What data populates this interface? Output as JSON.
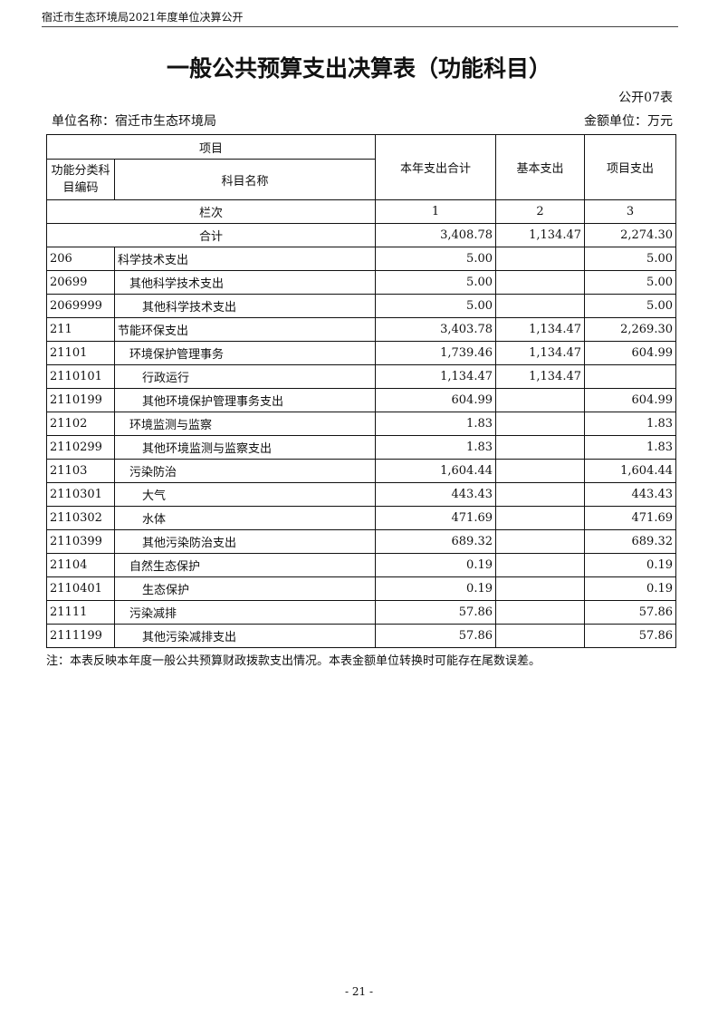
{
  "running_header": "宿迁市生态环境局2021年度单位决算公开",
  "title": "一般公共预算支出决算表（功能科目）",
  "table_no": "公开07表",
  "unit_name": "单位名称：宿迁市生态环境局",
  "money_unit": "金额单位：万元",
  "headers": {
    "item": "项目",
    "code": "功能分类科目编码",
    "name": "科目名称",
    "col1": "本年支出合计",
    "col2": "基本支出",
    "col3": "项目支出",
    "lanci": "栏次",
    "n1": "1",
    "n2": "2",
    "n3": "3"
  },
  "total": {
    "label": "合计",
    "c1": "3,408.78",
    "c2": "1,134.47",
    "c3": "2,274.30"
  },
  "rows": [
    {
      "code": "206",
      "name": "科学技术支出",
      "level": 0,
      "c1": "5.00",
      "c2": "",
      "c3": "5.00"
    },
    {
      "code": "20699",
      "name": "其他科学技术支出",
      "level": 1,
      "c1": "5.00",
      "c2": "",
      "c3": "5.00"
    },
    {
      "code": "2069999",
      "name": "其他科学技术支出",
      "level": 2,
      "c1": "5.00",
      "c2": "",
      "c3": "5.00"
    },
    {
      "code": "211",
      "name": "节能环保支出",
      "level": 0,
      "c1": "3,403.78",
      "c2": "1,134.47",
      "c3": "2,269.30"
    },
    {
      "code": "21101",
      "name": "环境保护管理事务",
      "level": 1,
      "c1": "1,739.46",
      "c2": "1,134.47",
      "c3": "604.99"
    },
    {
      "code": "2110101",
      "name": "行政运行",
      "level": 2,
      "c1": "1,134.47",
      "c2": "1,134.47",
      "c3": ""
    },
    {
      "code": "2110199",
      "name": "其他环境保护管理事务支出",
      "level": 2,
      "c1": "604.99",
      "c2": "",
      "c3": "604.99"
    },
    {
      "code": "21102",
      "name": "环境监测与监察",
      "level": 1,
      "c1": "1.83",
      "c2": "",
      "c3": "1.83"
    },
    {
      "code": "2110299",
      "name": "其他环境监测与监察支出",
      "level": 2,
      "c1": "1.83",
      "c2": "",
      "c3": "1.83"
    },
    {
      "code": "21103",
      "name": "污染防治",
      "level": 1,
      "c1": "1,604.44",
      "c2": "",
      "c3": "1,604.44"
    },
    {
      "code": "2110301",
      "name": "大气",
      "level": 2,
      "c1": "443.43",
      "c2": "",
      "c3": "443.43"
    },
    {
      "code": "2110302",
      "name": "水体",
      "level": 2,
      "c1": "471.69",
      "c2": "",
      "c3": "471.69"
    },
    {
      "code": "2110399",
      "name": "其他污染防治支出",
      "level": 2,
      "c1": "689.32",
      "c2": "",
      "c3": "689.32"
    },
    {
      "code": "21104",
      "name": "自然生态保护",
      "level": 1,
      "c1": "0.19",
      "c2": "",
      "c3": "0.19"
    },
    {
      "code": "2110401",
      "name": "生态保护",
      "level": 2,
      "c1": "0.19",
      "c2": "",
      "c3": "0.19"
    },
    {
      "code": "21111",
      "name": "污染减排",
      "level": 1,
      "c1": "57.86",
      "c2": "",
      "c3": "57.86"
    },
    {
      "code": "2111199",
      "name": "其他污染减排支出",
      "level": 2,
      "c1": "57.86",
      "c2": "",
      "c3": "57.86"
    }
  ],
  "note": "注：本表反映本年度一般公共预算财政拨款支出情况。本表金额单位转换时可能存在尾数误差。",
  "page_number": "- 21 -"
}
